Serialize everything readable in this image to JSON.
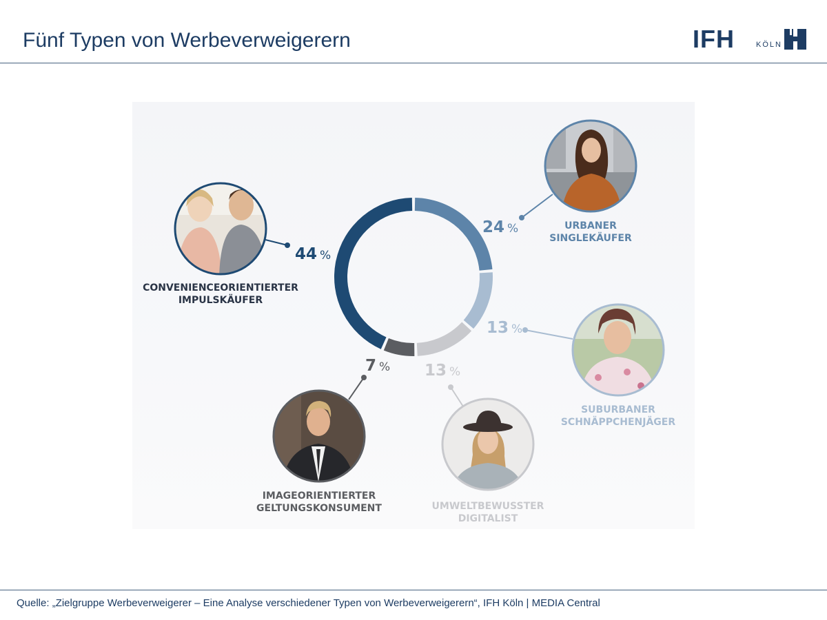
{
  "header": {
    "title": "Fünf Typen von Werbeverweigerern",
    "logo_text": "IFH",
    "logo_sub": "KÖLN"
  },
  "footer": {
    "source": "Quelle: „Zielgruppe Werbeverweigerer – Eine Analyse verschiedener Typen von Werbeverweigerern“, IFH Köln | MEDIA Central"
  },
  "colors": {
    "navy": "#1e4a73",
    "steel": "#5d84a9",
    "light_steel": "#a8bcd1",
    "light_gray": "#c8c9cd",
    "dark_gray": "#5b5d61"
  },
  "chart_data": {
    "type": "pie",
    "style": "donut",
    "title": "Fünf Typen von Werbeverweigerern",
    "unit": "%",
    "segments": [
      {
        "name": "URBANER SINGLEKÄUFER",
        "lines": [
          "URBANER",
          "SINGLEKÄUFER"
        ],
        "value": 24,
        "color": "#5d84a9",
        "label": "24",
        "icon": "woman-city-photo"
      },
      {
        "name": "SUBURBANER SCHNÄPPCHENJÄGER",
        "lines": [
          "SUBURBANER",
          "SCHNÄPPCHENJÄGER"
        ],
        "value": 13,
        "color": "#a8bcd1",
        "label": "13",
        "icon": "older-woman-photo"
      },
      {
        "name": "UMWELTBEWUSSTER DIGITALIST",
        "lines": [
          "UMWELTBEWUSSTER",
          "DIGITALIST"
        ],
        "value": 13,
        "color": "#c8c9cd",
        "label": "13",
        "icon": "woman-hat-photo"
      },
      {
        "name": "IMAGEORIENTIERTER GELTUNGSKONSUMENT",
        "lines": [
          "IMAGEORIENTIERTER",
          "GELTUNGSKONSUMENT"
        ],
        "value": 7,
        "color": "#5b5d61",
        "label": "7",
        "icon": "man-suit-photo"
      },
      {
        "name": "CONVENIENCEORIENTIERTER IMPULSKÄUFER",
        "lines": [
          "CONVENIENCEORIENTIERTER",
          "IMPULSKÄUFER"
        ],
        "value": 44,
        "color": "#1e4a73",
        "label": "44",
        "icon": "couple-photo"
      }
    ]
  }
}
